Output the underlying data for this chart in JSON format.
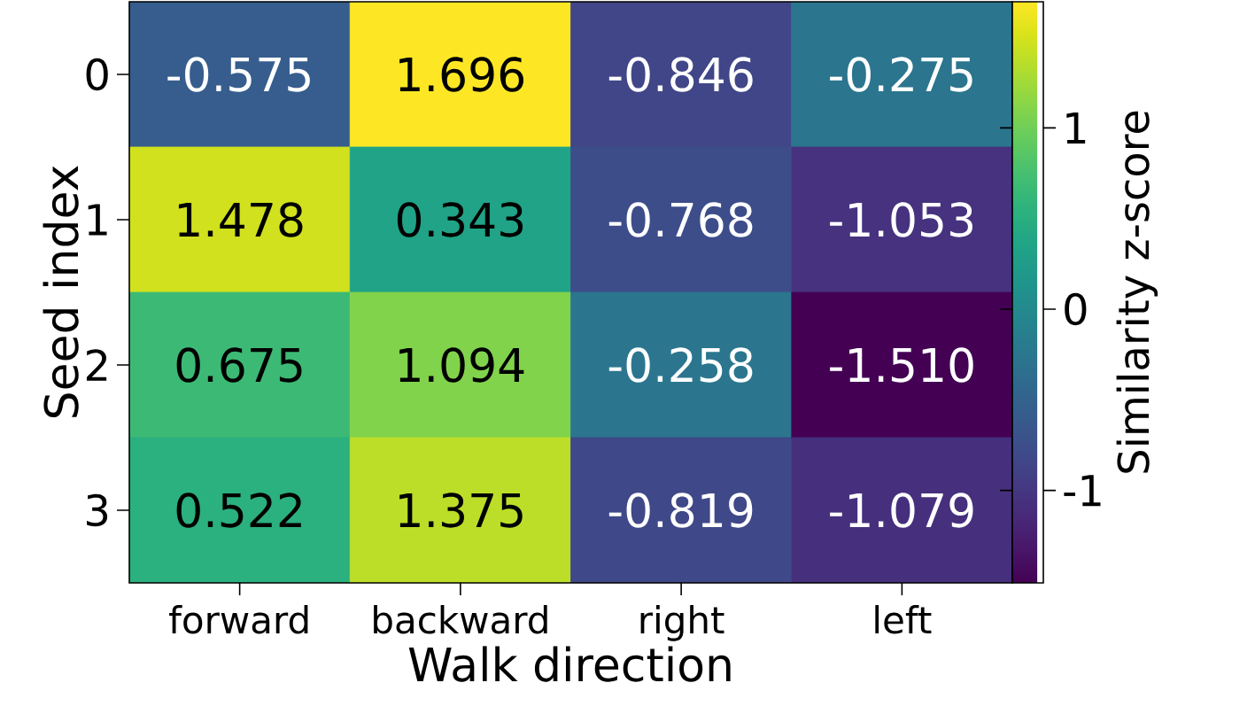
{
  "chart_data": {
    "type": "heatmap",
    "xlabel": "Walk direction",
    "ylabel": "Seed index",
    "clabel": "Similarity z-score",
    "categories": [
      "forward",
      "backward",
      "right",
      "left"
    ],
    "y_categories": [
      "0",
      "1",
      "2",
      "3"
    ],
    "cells": [
      [
        -0.575,
        1.696,
        -0.846,
        -0.275
      ],
      [
        1.478,
        0.343,
        -0.768,
        -1.053
      ],
      [
        0.675,
        1.094,
        -0.258,
        -1.51
      ],
      [
        0.522,
        1.375,
        -0.819,
        -1.079
      ]
    ],
    "cell_labels": [
      [
        "-0.575",
        "1.696",
        "-0.846",
        "-0.275"
      ],
      [
        "1.478",
        "0.343",
        "-0.768",
        "-1.053"
      ],
      [
        "0.675",
        "1.094",
        "-0.258",
        "-1.510"
      ],
      [
        "0.522",
        "1.375",
        "-0.819",
        "-1.079"
      ]
    ],
    "clim": [
      -1.51,
      1.696
    ],
    "cticks": [
      -1,
      0,
      1
    ]
  }
}
